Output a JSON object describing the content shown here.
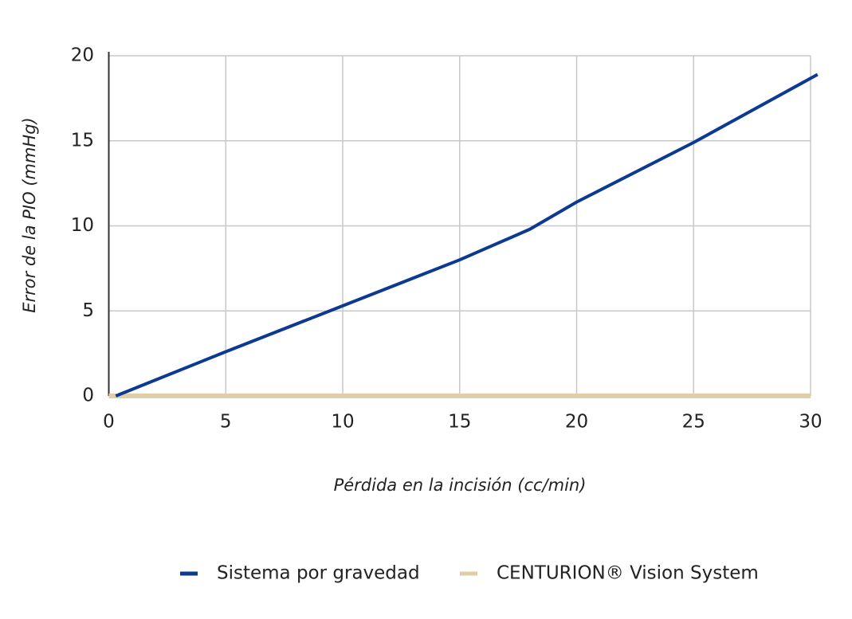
{
  "chart_data": {
    "type": "line",
    "xlabel": "Pérdida en la incisión (cc/min)",
    "ylabel": "Error de la PIO (mmHg)",
    "xlim": [
      0,
      30
    ],
    "xticks": [
      0,
      5,
      10,
      15,
      20,
      25,
      30
    ],
    "ylim": [
      0,
      20
    ],
    "yticks": [
      0,
      5,
      10,
      15,
      20
    ],
    "grid": true,
    "legend": "bottom",
    "series": [
      {
        "name": "Sistema por gravedad",
        "color": "#0d3a91",
        "x": [
          0.3,
          5,
          10,
          15,
          18,
          20,
          25,
          30.3
        ],
        "values": [
          0,
          2.6,
          5.3,
          8.0,
          9.8,
          11.4,
          14.9,
          18.9
        ]
      },
      {
        "name": "CENTURION® Vision System",
        "color": "#e0cfa6",
        "x": [
          0,
          30
        ],
        "values": [
          0,
          0
        ]
      }
    ]
  }
}
